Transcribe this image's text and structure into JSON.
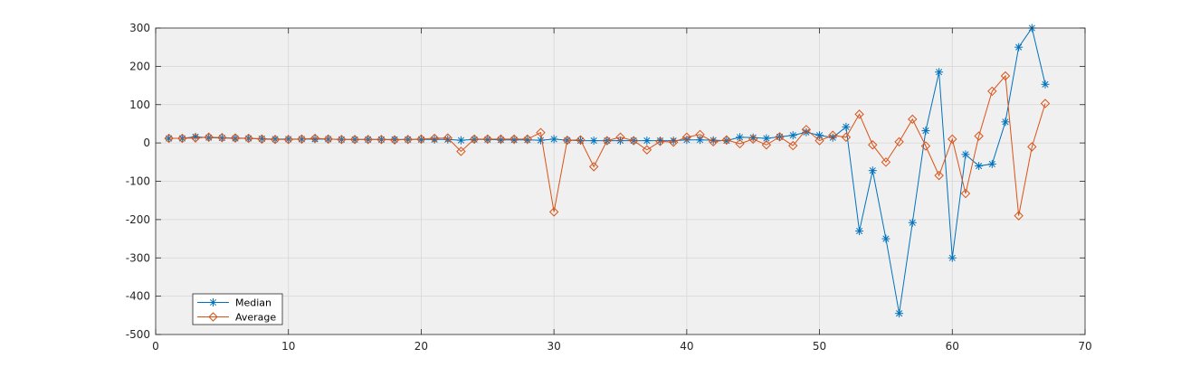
{
  "chart_data": {
    "type": "line",
    "title": "",
    "xlabel": "",
    "ylabel": "",
    "xlim": [
      0,
      70
    ],
    "ylim": [
      -500,
      300
    ],
    "xticks": [
      0,
      10,
      20,
      30,
      40,
      50,
      60,
      70
    ],
    "yticks": [
      -500,
      -400,
      -300,
      -200,
      -100,
      0,
      100,
      200,
      300
    ],
    "xtick_labels": [
      "0",
      "10",
      "20",
      "30",
      "40",
      "50",
      "60",
      "70"
    ],
    "ytick_labels": [
      "-500",
      "-400",
      "-300",
      "-200",
      "-100",
      "0",
      "100",
      "200",
      "300"
    ],
    "grid": true,
    "legend_position": "bottom-left",
    "x": [
      1,
      2,
      3,
      4,
      5,
      6,
      7,
      8,
      9,
      10,
      11,
      12,
      13,
      14,
      15,
      16,
      17,
      18,
      19,
      20,
      21,
      22,
      23,
      24,
      25,
      26,
      27,
      28,
      29,
      30,
      31,
      32,
      33,
      34,
      35,
      36,
      37,
      38,
      39,
      40,
      41,
      42,
      43,
      44,
      45,
      46,
      47,
      48,
      49,
      50,
      51,
      52,
      53,
      54,
      55,
      56,
      57,
      58,
      59,
      60,
      61,
      62,
      63,
      64,
      65,
      66,
      67
    ],
    "series": [
      {
        "name": "Median",
        "color": "#0072BD",
        "marker": "asterisk",
        "values": [
          12,
          12,
          16,
          14,
          13,
          12,
          12,
          11,
          10,
          10,
          10,
          10,
          10,
          9,
          9,
          9,
          9,
          9,
          9,
          9,
          9,
          9,
          7,
          9,
          9,
          8,
          8,
          8,
          7,
          10,
          7,
          6,
          6,
          6,
          6,
          6,
          6,
          6,
          6,
          8,
          8,
          7,
          6,
          15,
          14,
          12,
          16,
          20,
          28,
          20,
          14,
          42,
          -230,
          -72,
          -250,
          -445,
          -208,
          32,
          185,
          -300,
          -30,
          -60,
          -55,
          55,
          250,
          300,
          153
        ]
      },
      {
        "name": "Average",
        "color": "#D95319",
        "marker": "diamond",
        "values": [
          12,
          12,
          13,
          15,
          14,
          13,
          12,
          10,
          9,
          9,
          10,
          12,
          10,
          9,
          9,
          9,
          9,
          8,
          9,
          10,
          12,
          13,
          -22,
          10,
          10,
          10,
          10,
          10,
          27,
          -180,
          7,
          8,
          -62,
          6,
          15,
          6,
          -18,
          4,
          2,
          15,
          22,
          3,
          8,
          -2,
          10,
          -5,
          16,
          -7,
          35,
          6,
          20,
          15,
          75,
          -5,
          -50,
          3,
          62,
          -8,
          -85,
          10,
          -132,
          18,
          135,
          175,
          -190,
          -10,
          103
        ]
      }
    ]
  }
}
